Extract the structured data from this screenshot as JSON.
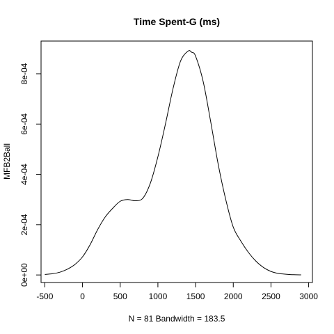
{
  "chart_data": {
    "type": "line",
    "title": "Time Spent-G (ms)",
    "xlabel": "N = 81   Bandwidth = 183.5",
    "ylabel": "MFB2Ball",
    "xlim": [
      -550,
      3050
    ],
    "ylim": [
      -3e-05,
      0.00093
    ],
    "grid": false,
    "x_ticks": [
      {
        "value": -500,
        "label": "-500"
      },
      {
        "value": 0,
        "label": "0"
      },
      {
        "value": 500,
        "label": "500"
      },
      {
        "value": 1000,
        "label": "1000"
      },
      {
        "value": 1500,
        "label": "1500"
      },
      {
        "value": 2000,
        "label": "2000"
      },
      {
        "value": 2500,
        "label": "2500"
      },
      {
        "value": 3000,
        "label": "3000"
      }
    ],
    "y_ticks": [
      {
        "value": 0,
        "label": "0e+00"
      },
      {
        "value": 0.0002,
        "label": "2e-04"
      },
      {
        "value": 0.0004,
        "label": "4e-04"
      },
      {
        "value": 0.0006,
        "label": "6e-04"
      },
      {
        "value": 0.0008,
        "label": "8e-04"
      }
    ],
    "series": [
      {
        "color": "#000000",
        "x": [
          -500,
          -400,
          -300,
          -200,
          -100,
          0,
          100,
          200,
          300,
          400,
          500,
          600,
          700,
          800,
          900,
          1000,
          1100,
          1200,
          1300,
          1400,
          1450,
          1500,
          1600,
          1700,
          1800,
          1900,
          2000,
          2100,
          2200,
          2300,
          2400,
          2500,
          2600,
          2700,
          2800,
          2900
        ],
        "y": [
          2e-06,
          5e-06,
          1.1e-05,
          2.3e-05,
          4.2e-05,
          7.2e-05,
          0.00012,
          0.00018,
          0.00023,
          0.000265,
          0.000293,
          0.0003,
          0.000295,
          0.000305,
          0.000365,
          0.00047,
          0.0006,
          0.00074,
          0.00085,
          0.00089,
          0.000885,
          0.00087,
          0.00077,
          0.00061,
          0.00044,
          0.0003,
          0.00019,
          0.000135,
          9e-05,
          5.5e-05,
          3e-05,
          1.4e-05,
          6e-06,
          3e-06,
          1e-06,
          5e-07
        ]
      }
    ]
  }
}
